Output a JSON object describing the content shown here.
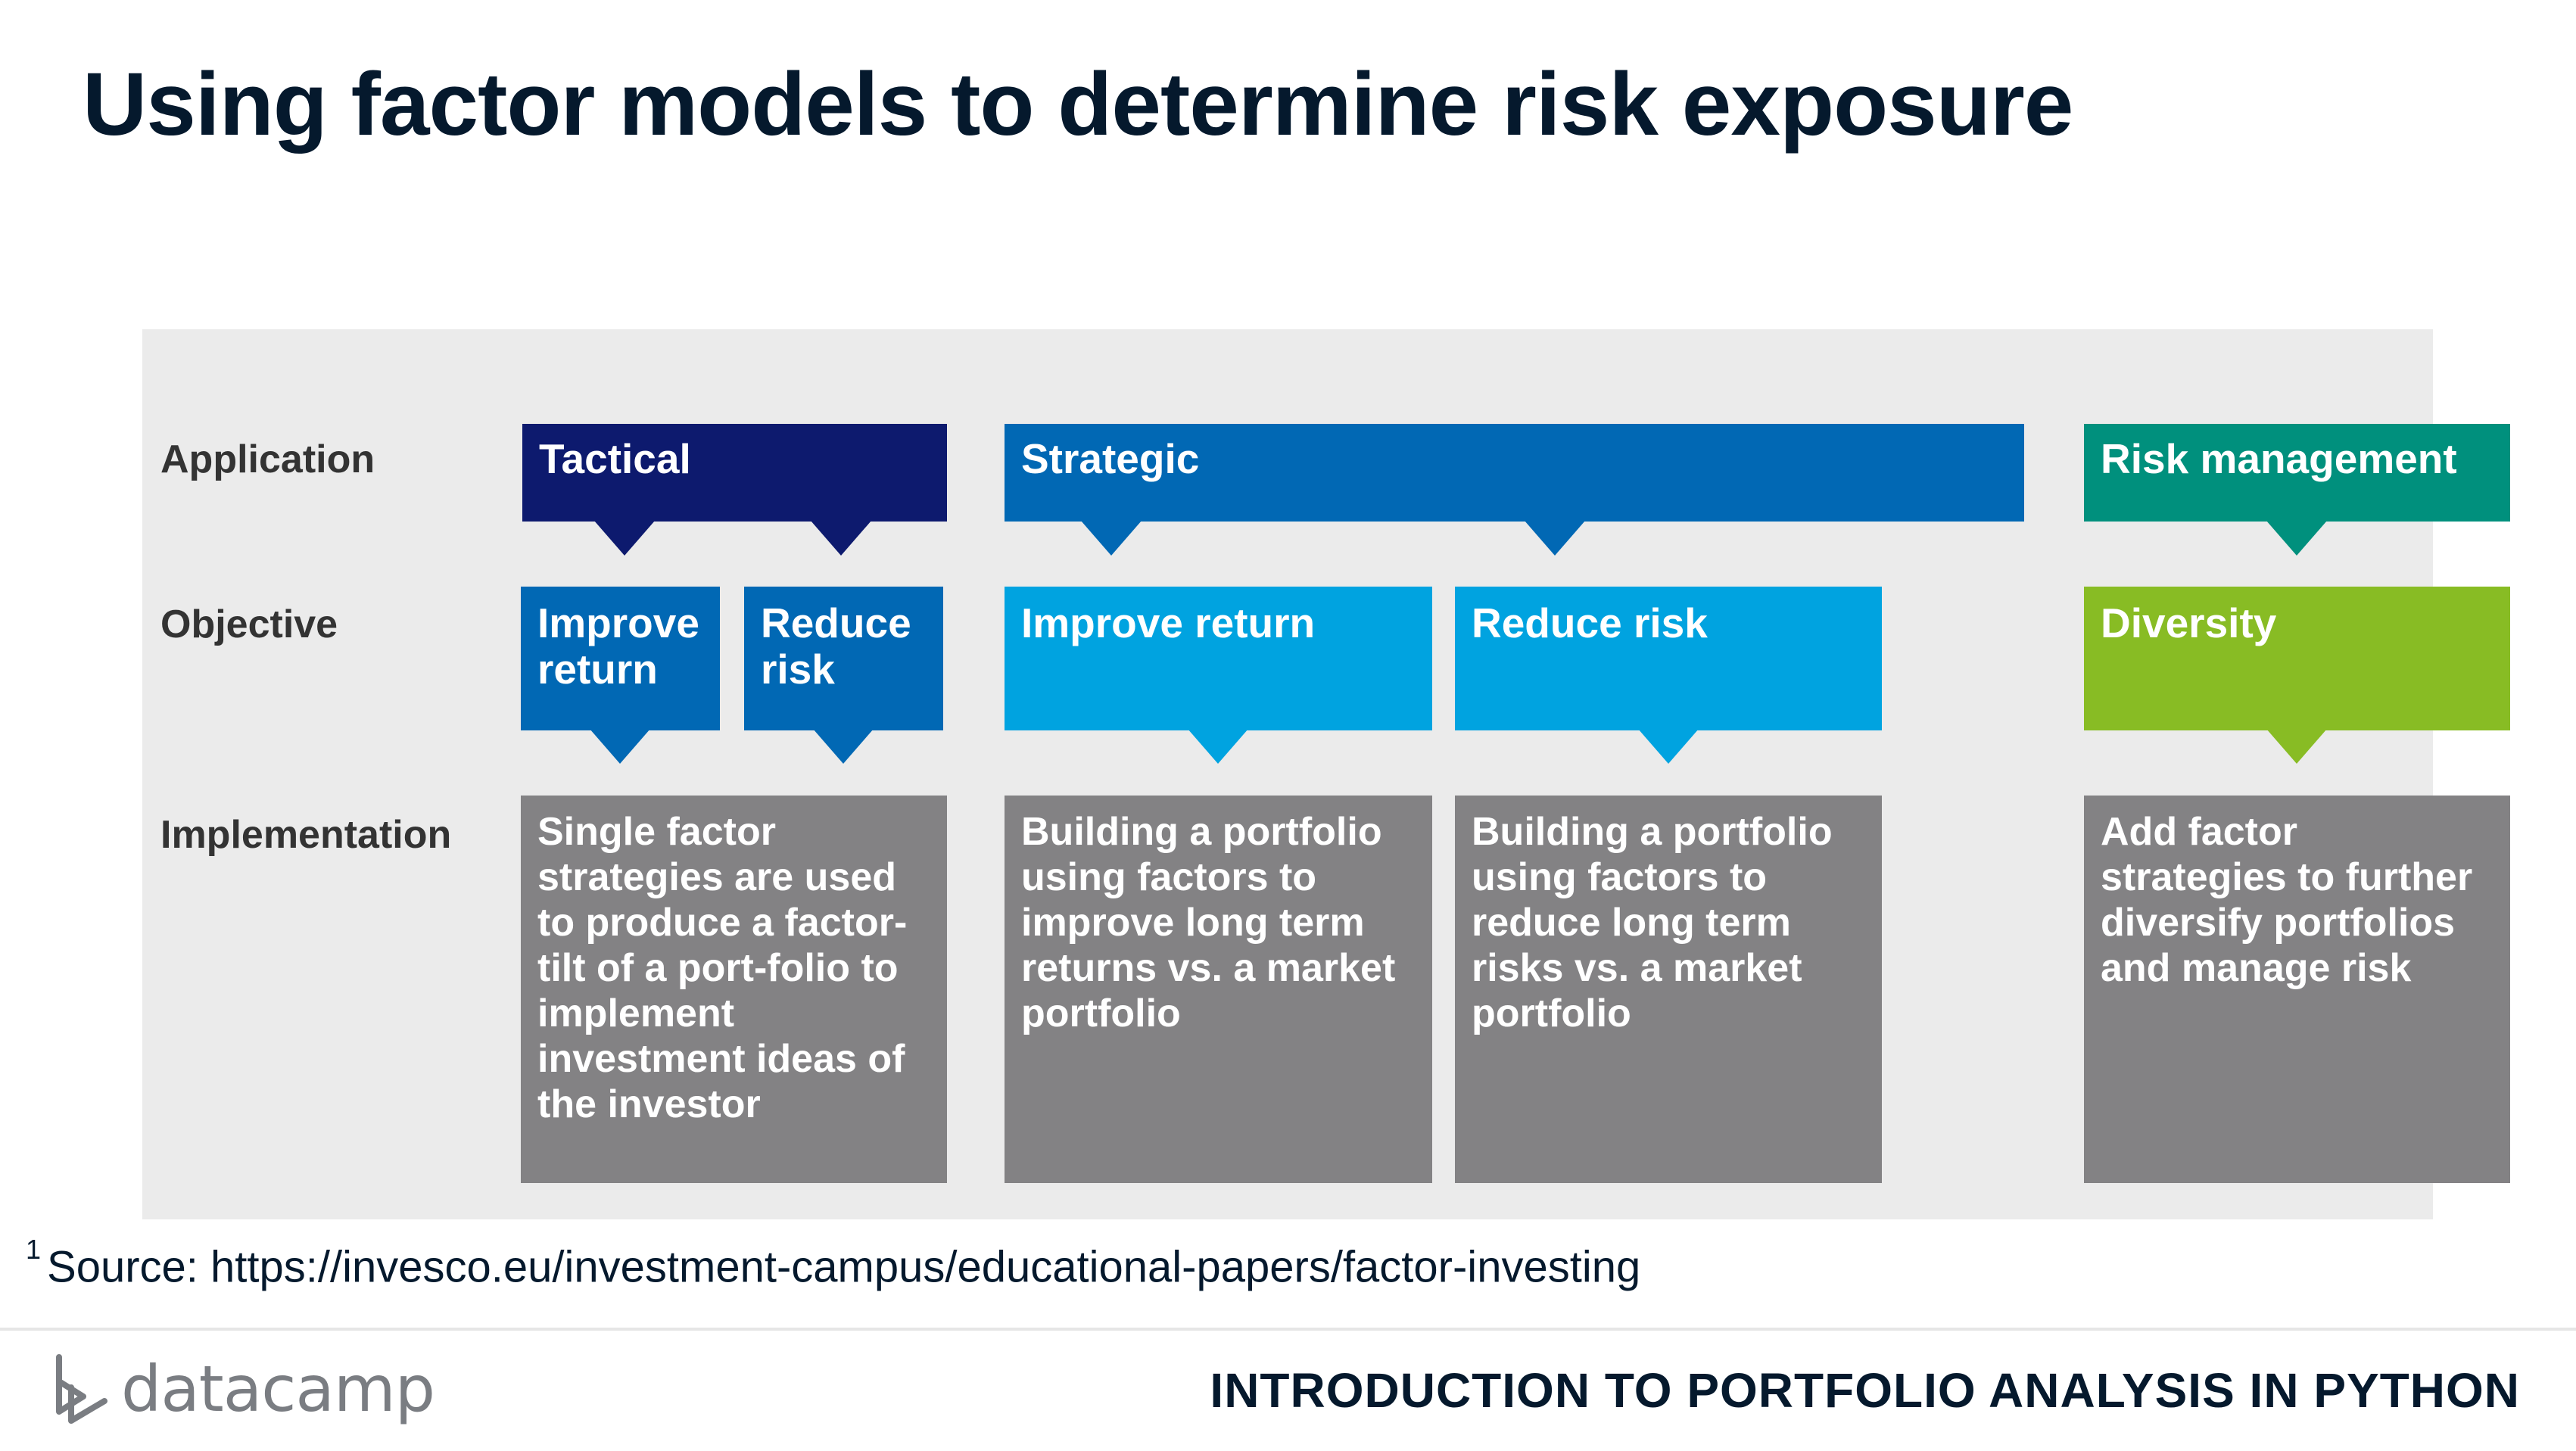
{
  "slide": {
    "title": "Using factor models to determine risk exposure",
    "source_marker": "1",
    "source_text": "Source: https://invesco.eu/investment-campus/educational-papers/factor-investing",
    "brand": "datacamp",
    "course": "INTRODUCTION TO PORTFOLIO ANALYSIS IN PYTHON"
  },
  "diagram": {
    "row_labels": {
      "application": "Application",
      "objective": "Objective",
      "implementation": "Implementation"
    },
    "applications": [
      {
        "label": "Tactical",
        "color": "#0d1a6e"
      },
      {
        "label": "Strategic",
        "color": "#0168b4"
      },
      {
        "label": "Risk management",
        "color": "#00907d"
      }
    ],
    "objectives": [
      {
        "label": "Improve return",
        "color": "#0168b4"
      },
      {
        "label": "Reduce risk",
        "color": "#0168b4"
      },
      {
        "label": "Improve return",
        "color": "#00a3e0"
      },
      {
        "label": "Reduce risk",
        "color": "#00a3e0"
      },
      {
        "label": "Diversity",
        "color": "#88bc24"
      }
    ],
    "implementations": [
      {
        "text": "Single factor strategies are used to produce a factor-tilt of a port-folio to implement investment ideas of the investor"
      },
      {
        "text": "Building a portfolio using factors to improve long term returns vs. a market portfolio"
      },
      {
        "text": "Building a portfolio using factors to reduce long term risks vs. a market portfolio"
      },
      {
        "text": "Add factor strategies to further diversify portfolios and manage risk"
      }
    ],
    "implementation_color": "#838284"
  },
  "icons": {
    "logo": "datacamp-logo-icon"
  }
}
